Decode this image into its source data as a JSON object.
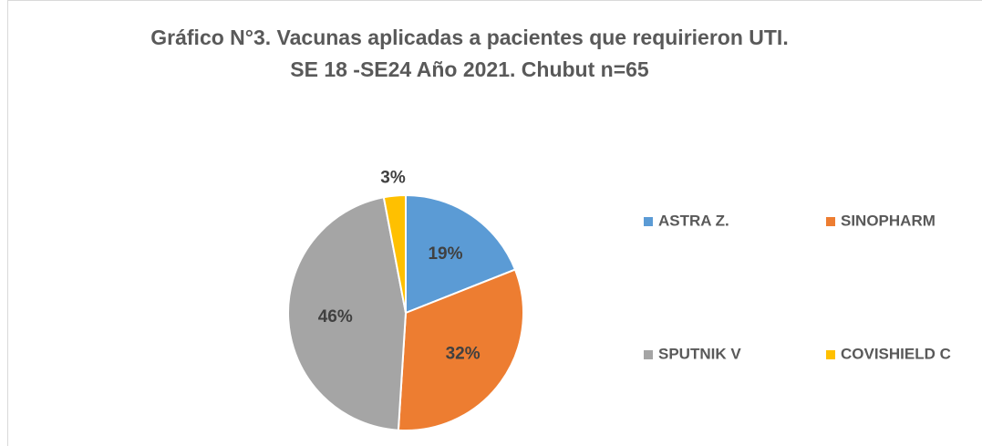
{
  "chart_data": {
    "type": "pie",
    "title": [
      "Gráfico N°3. Vacunas aplicadas a pacientes que requirieron UTI.",
      "SE 18 -SE24 Año 2021. Chubut n=65"
    ],
    "categories": [
      "ASTRA Z.",
      "SINOPHARM",
      "SPUTNIK V",
      "COVISHIELD C"
    ],
    "values": [
      19,
      32,
      46,
      3
    ],
    "value_labels": [
      "19%",
      "32%",
      "46%",
      "3%"
    ],
    "colors": [
      "#5b9bd5",
      "#ed7d31",
      "#a5a5a5",
      "#ffc000"
    ],
    "legend": "right"
  }
}
